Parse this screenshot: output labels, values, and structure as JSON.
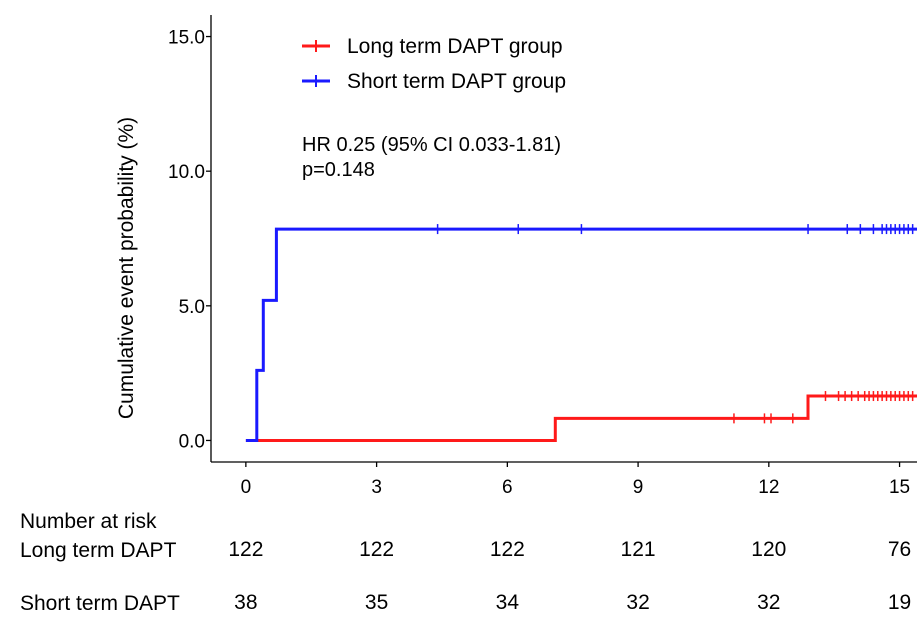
{
  "chart_data": {
    "type": "line",
    "ylabel": "Cumulative event probability (%)",
    "xlabel": "",
    "xlim": [
      -0.8,
      15.4
    ],
    "ylim": [
      -0.8,
      15.8
    ],
    "xticks": [
      0,
      3,
      6,
      9,
      12,
      15
    ],
    "yticks": [
      0,
      5,
      10,
      15
    ],
    "ytick_labels": [
      "0.0",
      "5.0",
      "10.0",
      "15.0"
    ],
    "legend_position": "top-left",
    "annotation": [
      "HR 0.25 (95% CI 0.033-1.81)",
      "p=0.148"
    ],
    "series": [
      {
        "name": "Long term DAPT group",
        "color": "#ff1a1a",
        "steps": [
          [
            0,
            0
          ],
          [
            7.1,
            0
          ],
          [
            7.1,
            0.82
          ],
          [
            12.9,
            0.82
          ],
          [
            12.9,
            1.65
          ],
          [
            15.4,
            1.65
          ]
        ],
        "censor": [
          [
            11.2,
            0.82
          ],
          [
            11.9,
            0.82
          ],
          [
            12.05,
            0.82
          ],
          [
            12.55,
            0.82
          ],
          [
            13.3,
            1.65
          ],
          [
            13.6,
            1.65
          ],
          [
            13.75,
            1.65
          ],
          [
            13.9,
            1.65
          ],
          [
            14.05,
            1.65
          ],
          [
            14.2,
            1.65
          ],
          [
            14.3,
            1.65
          ],
          [
            14.4,
            1.65
          ],
          [
            14.5,
            1.65
          ],
          [
            14.6,
            1.65
          ],
          [
            14.7,
            1.65
          ],
          [
            14.8,
            1.65
          ],
          [
            14.9,
            1.65
          ],
          [
            15.0,
            1.65
          ],
          [
            15.1,
            1.65
          ],
          [
            15.2,
            1.65
          ],
          [
            15.3,
            1.65
          ]
        ]
      },
      {
        "name": "Short term DAPT group",
        "color": "#1a1aff",
        "steps": [
          [
            0,
            0
          ],
          [
            0.25,
            0
          ],
          [
            0.25,
            2.6
          ],
          [
            0.4,
            2.6
          ],
          [
            0.4,
            5.2
          ],
          [
            0.7,
            5.2
          ],
          [
            0.7,
            7.85
          ],
          [
            15.4,
            7.85
          ]
        ],
        "censor": [
          [
            4.4,
            7.85
          ],
          [
            6.25,
            7.85
          ],
          [
            7.7,
            7.85
          ],
          [
            12.9,
            7.85
          ],
          [
            13.8,
            7.85
          ],
          [
            14.1,
            7.85
          ],
          [
            14.4,
            7.85
          ],
          [
            14.6,
            7.85
          ],
          [
            14.7,
            7.85
          ],
          [
            14.8,
            7.85
          ],
          [
            14.9,
            7.85
          ],
          [
            15.0,
            7.85
          ],
          [
            15.1,
            7.85
          ],
          [
            15.2,
            7.85
          ],
          [
            15.3,
            7.85
          ]
        ]
      }
    ]
  },
  "risk_table": {
    "title": "Number at risk",
    "rows": [
      {
        "label": "Long term DAPT",
        "values": [
          "122",
          "122",
          "122",
          "121",
          "120",
          "76"
        ]
      },
      {
        "label": "Short term DAPT",
        "values": [
          "38",
          "35",
          "34",
          "32",
          "32",
          "19"
        ]
      }
    ]
  }
}
